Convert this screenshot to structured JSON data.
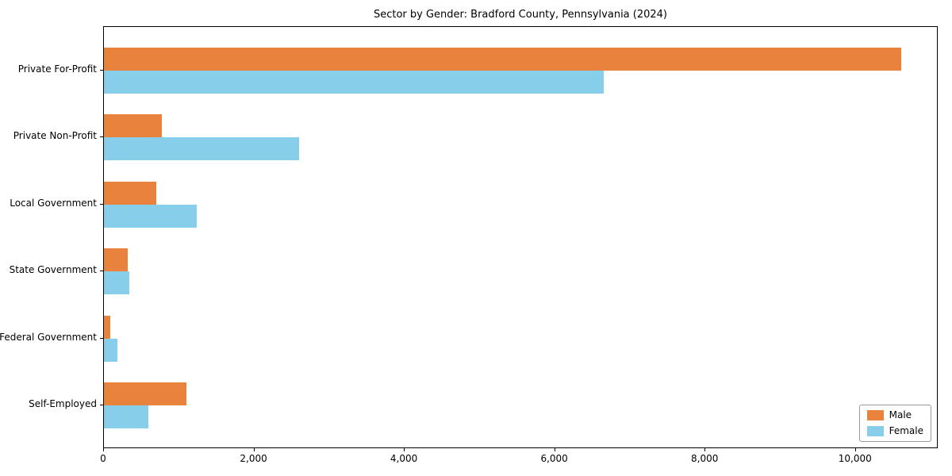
{
  "chart_data": {
    "type": "bar",
    "orientation": "horizontal",
    "title": "Sector by Gender: Bradford County, Pennsylvania (2024)",
    "categories": [
      "Private For-Profit",
      "Private Non-Profit",
      "Local Government",
      "State Government",
      "Federal Government",
      "Self-Employed"
    ],
    "series": [
      {
        "name": "Male",
        "color": "#e8823d",
        "values": [
          10600,
          770,
          700,
          320,
          80,
          1100
        ]
      },
      {
        "name": "Female",
        "color": "#87ceeb",
        "values": [
          6650,
          2600,
          1230,
          340,
          180,
          590
        ]
      }
    ],
    "xlim": [
      0,
      11100
    ],
    "xticks": [
      0,
      2000,
      4000,
      6000,
      8000,
      10000
    ],
    "xtick_labels": [
      "0",
      "2,000",
      "4,000",
      "6,000",
      "8,000",
      "10,000"
    ],
    "legend_position": "lower right",
    "grid": false,
    "axis_color": "#000000"
  }
}
